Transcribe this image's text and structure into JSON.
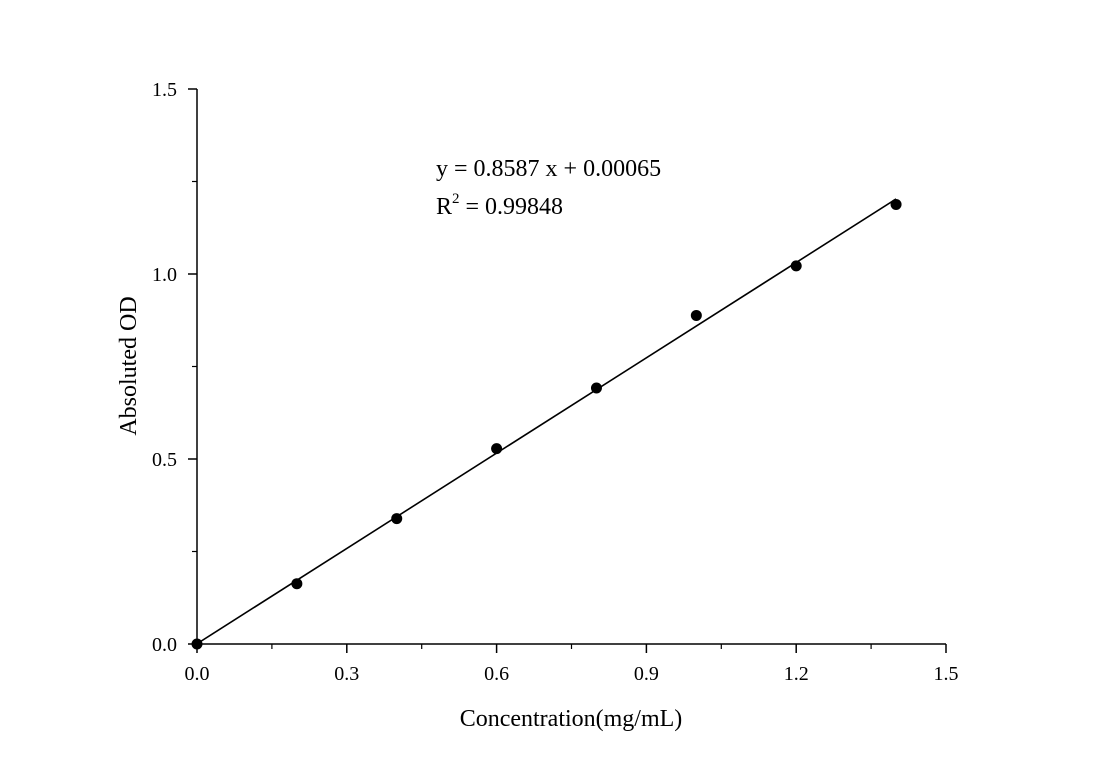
{
  "chart_data": {
    "type": "scatter",
    "xlabel": "Concentration(mg/mL)",
    "ylabel": "Absoluted OD",
    "xlim": [
      0.0,
      1.5
    ],
    "ylim": [
      0.0,
      1.5
    ],
    "x_ticks": [
      "0.0",
      "0.3",
      "0.6",
      "0.9",
      "1.2",
      "1.5"
    ],
    "y_ticks": [
      "0.0",
      "0.5",
      "1.0",
      "1.5"
    ],
    "grid": false,
    "points": [
      {
        "x": 0.0,
        "y": 0.0
      },
      {
        "x": 0.2,
        "y": 0.163
      },
      {
        "x": 0.4,
        "y": 0.339
      },
      {
        "x": 0.6,
        "y": 0.528
      },
      {
        "x": 0.8,
        "y": 0.692
      },
      {
        "x": 1.0,
        "y": 0.888
      },
      {
        "x": 1.2,
        "y": 1.022
      },
      {
        "x": 1.4,
        "y": 1.188
      }
    ],
    "fit": {
      "slope": 0.8587,
      "intercept": 0.00065,
      "x_range": [
        0.0,
        1.4
      ],
      "equation_label": "y = 0.8587 x + 0.00065",
      "r2_prefix": "R",
      "r2_sup": "2",
      "r2_value": " = 0.99848"
    },
    "colors": {
      "points": "#000000",
      "line": "#000000",
      "axes": "#000000"
    }
  }
}
